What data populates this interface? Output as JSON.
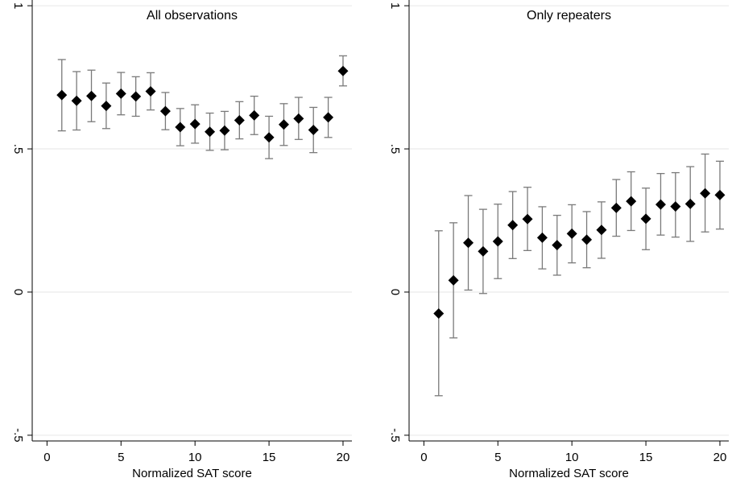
{
  "chart_data": [
    {
      "type": "scatter",
      "title": "All observations",
      "xlabel": "Normalized SAT score",
      "ylabel": "",
      "xlim": [
        -1,
        20.6
      ],
      "ylim": [
        -0.52,
        1.02
      ],
      "xticks": [
        0,
        5,
        10,
        15,
        20
      ],
      "xtick_labels": [
        "0",
        "5",
        "10",
        "15",
        "20"
      ],
      "yticks": [
        -0.5,
        0,
        0.5,
        1
      ],
      "ytick_labels": [
        "-.5",
        "0",
        ".5",
        "1"
      ],
      "grid": true,
      "x": [
        1,
        2,
        3,
        4,
        5,
        6,
        7,
        8,
        9,
        10,
        11,
        12,
        13,
        14,
        15,
        16,
        17,
        18,
        19,
        20
      ],
      "y": [
        0.688,
        0.668,
        0.685,
        0.65,
        0.693,
        0.683,
        0.701,
        0.632,
        0.576,
        0.587,
        0.56,
        0.564,
        0.6,
        0.617,
        0.54,
        0.585,
        0.606,
        0.566,
        0.61,
        0.772
      ],
      "ci_low": [
        0.563,
        0.566,
        0.595,
        0.571,
        0.619,
        0.614,
        0.636,
        0.567,
        0.511,
        0.52,
        0.495,
        0.497,
        0.535,
        0.55,
        0.466,
        0.512,
        0.533,
        0.487,
        0.54,
        0.72
      ],
      "ci_high": [
        0.812,
        0.77,
        0.775,
        0.73,
        0.767,
        0.752,
        0.766,
        0.697,
        0.641,
        0.654,
        0.625,
        0.631,
        0.665,
        0.684,
        0.614,
        0.658,
        0.68,
        0.645,
        0.68,
        0.825
      ]
    },
    {
      "type": "scatter",
      "title": "Only repeaters",
      "xlabel": "Normalized SAT score",
      "ylabel": "",
      "xlim": [
        -1,
        20.6
      ],
      "ylim": [
        -0.52,
        1.02
      ],
      "xticks": [
        0,
        5,
        10,
        15,
        20
      ],
      "xtick_labels": [
        "0",
        "5",
        "10",
        "15",
        "20"
      ],
      "yticks": [
        -0.5,
        0,
        0.5,
        1
      ],
      "ytick_labels": [
        "-.5",
        "0",
        ".5",
        "1"
      ],
      "grid": true,
      "x": [
        1,
        2,
        3,
        4,
        5,
        6,
        7,
        8,
        9,
        10,
        11,
        12,
        13,
        14,
        15,
        16,
        17,
        18,
        19,
        20
      ],
      "y": [
        -0.075,
        0.041,
        0.172,
        0.142,
        0.177,
        0.234,
        0.255,
        0.19,
        0.164,
        0.204,
        0.183,
        0.217,
        0.294,
        0.317,
        0.256,
        0.306,
        0.299,
        0.308,
        0.345,
        0.339
      ],
      "ci_low": [
        -0.362,
        -0.16,
        0.007,
        -0.005,
        0.047,
        0.117,
        0.145,
        0.081,
        0.059,
        0.102,
        0.085,
        0.118,
        0.195,
        0.215,
        0.148,
        0.199,
        0.192,
        0.177,
        0.21,
        0.22
      ],
      "ci_high": [
        0.214,
        0.242,
        0.337,
        0.289,
        0.307,
        0.351,
        0.366,
        0.298,
        0.268,
        0.305,
        0.281,
        0.315,
        0.393,
        0.42,
        0.363,
        0.414,
        0.417,
        0.438,
        0.482,
        0.457
      ]
    }
  ]
}
